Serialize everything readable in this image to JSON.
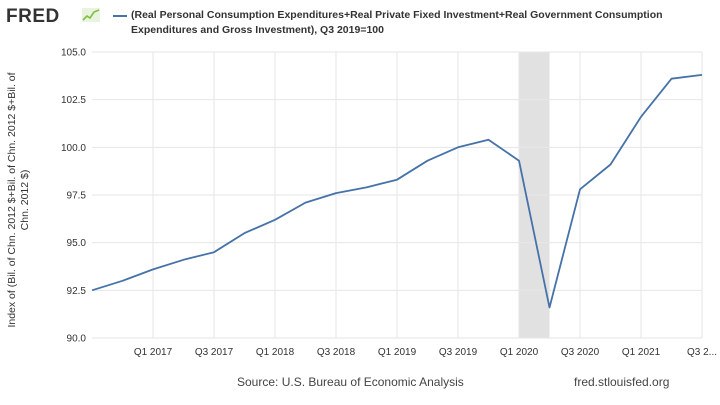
{
  "header": {
    "logo_text": "FRED",
    "legend_text": "(Real Personal Consumption Expenditures+Real Private Fixed Investment+Real Government Consumption Expenditures and Gross Investment), Q3 2019=100"
  },
  "footer": {
    "source": "Source: U.S. Bureau of Economic Analysis",
    "url": "fred.stlouisfed.org"
  },
  "colors": {
    "series": "#4572a7",
    "recession": "#e1e1e1",
    "grid": "#e6e6e6",
    "logo_accent": "#7fbf3f"
  },
  "chart_data": {
    "type": "line",
    "title": "(Real Personal Consumption Expenditures+Real Private Fixed Investment+Real Government Consumption Expenditures and Gross Investment), Q3 2019=100",
    "xlabel": "",
    "ylabel": "Index of (Bil. of Chn. 2012 $+Bil. of Chn. 2012 $+Bil. of Chn. 2012 $)",
    "ylim": [
      90.0,
      105.0
    ],
    "yticks": [
      "90.0",
      "92.5",
      "95.0",
      "97.5",
      "100.0",
      "102.5",
      "105.0"
    ],
    "xticks": [
      "Q1 2017",
      "Q3 2017",
      "Q1 2018",
      "Q3 2018",
      "Q1 2019",
      "Q3 2019",
      "Q1 2020",
      "Q3 2020",
      "Q1 2021",
      "Q3 2..."
    ],
    "grid": true,
    "legend_position": "top",
    "recession_shading": [
      "Q1 2020",
      "Q2 2020"
    ],
    "series": [
      {
        "name": "(Real Personal Consumption Expenditures+Real Private Fixed Investment+Real Government Consumption Expenditures and Gross Investment), Q3 2019=100",
        "x": [
          "Q3 2016",
          "Q4 2016",
          "Q1 2017",
          "Q2 2017",
          "Q3 2017",
          "Q4 2017",
          "Q1 2018",
          "Q2 2018",
          "Q3 2018",
          "Q4 2018",
          "Q1 2019",
          "Q2 2019",
          "Q3 2019",
          "Q4 2019",
          "Q1 2020",
          "Q2 2020",
          "Q3 2020",
          "Q4 2020",
          "Q1 2021",
          "Q2 2021",
          "Q3 2021"
        ],
        "values": [
          92.5,
          93.0,
          93.6,
          94.1,
          94.5,
          95.5,
          96.2,
          97.1,
          97.6,
          97.9,
          98.3,
          99.3,
          100.0,
          100.4,
          99.3,
          91.6,
          97.8,
          99.1,
          101.6,
          103.6,
          103.8
        ]
      }
    ]
  }
}
